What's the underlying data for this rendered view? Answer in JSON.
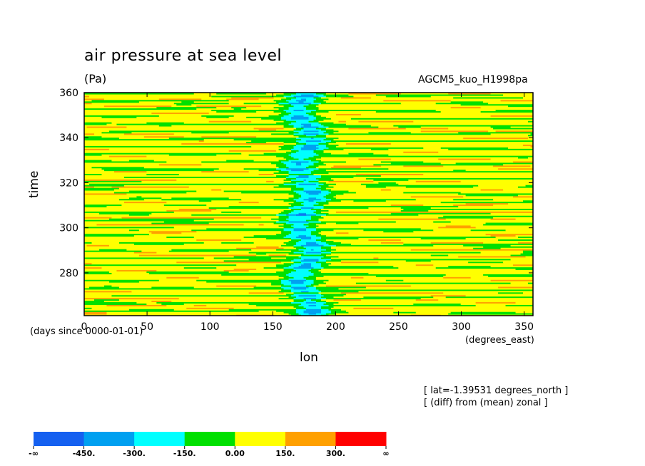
{
  "chart_data": {
    "type": "heatmap",
    "title": "air pressure at sea level",
    "units": "(Pa)",
    "run_label": "AGCM5_kuo_H1998pa",
    "xlabel": "lon",
    "ylabel": "time",
    "x_units": "(degrees_east)",
    "y_units": "(days since 0000-01-01)",
    "xlim": [
      0,
      357
    ],
    "ylim": [
      261,
      360
    ],
    "x_ticks": [
      0,
      50,
      100,
      150,
      200,
      250,
      300,
      350
    ],
    "y_ticks": [
      280,
      300,
      320,
      340,
      360
    ],
    "annotations": [
      "[ lat=-1.39531 degrees_north ]",
      "[ (diff) from (mean) zonal ]"
    ],
    "colorbar": {
      "colors": [
        "#1560f0",
        "#00a0f0",
        "#00ffff",
        "#00e000",
        "#ffff00",
        "#ffa000",
        "#ff0000"
      ],
      "labels": [
        "-∞",
        "-450.",
        "-300.",
        "-150.",
        "0.00",
        "150.",
        "300.",
        "∞"
      ]
    },
    "description_levels": {
      "dominant": "0 to 150 (yellow) and -150 to 0 (green)",
      "central_band_lon": [
        155,
        200
      ],
      "central_band_values": "-300 to -150 (cyan), locally -450 to -300",
      "sparse_patches": "150 to 300 (orange)"
    }
  }
}
